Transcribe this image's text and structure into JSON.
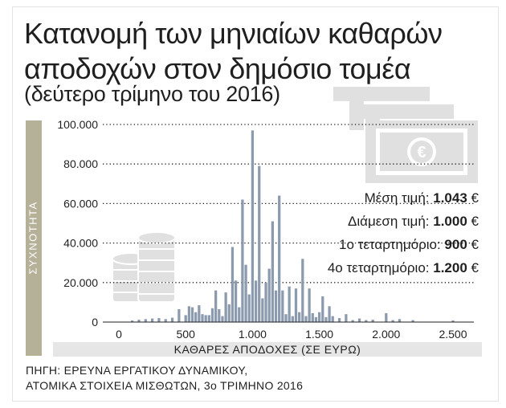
{
  "title_line1": "Κατανομή των μηνιαίων καθαρών",
  "title_line2": "αποδοχών στον δημόσιο τομέα",
  "subtitle": "(δεύτερο τρίμηνο του 2016)",
  "stats": [
    {
      "label": "Μέση τιμή:",
      "value": "1.043",
      "unit": "€"
    },
    {
      "label": "Διάμεση τιμή:",
      "value": "1.000",
      "unit": "€"
    },
    {
      "label": "1ο τεταρτημόριο:",
      "value": "900",
      "unit": "€"
    },
    {
      "label": "4ο τεταρτημόριο:",
      "value": "1.200",
      "unit": "€"
    }
  ],
  "source_line1": "ΠΗΓΗ: ΕΡΕΥΝΑ ΕΡΓΑΤΙΚΟΥ ΔΥΝΑΜΙΚΟΥ,",
  "source_line2": "ΑΤΟΜΙΚΑ ΣΤΟΙΧΕΙΑ ΜΙΣΘΩΤΩΝ, 3ο ΤΡΙΜΗΝΟ 2016",
  "colors": {
    "bar": "#8b9aad",
    "ylabel_band": "#b5b098",
    "xlabel_band": "#e6e6e6",
    "text": "#1f1f1f",
    "icon": "#e0e0e0"
  },
  "icons": [
    "euro-banknotes-icon",
    "coin-stacks-icon"
  ],
  "chart_data": {
    "type": "bar",
    "title": "Κατανομή των μηνιαίων καθαρών αποδοχών στον δημόσιο τομέα",
    "subtitle": "(δεύτερο τρίμηνο του 2016)",
    "xlabel": "ΚΑΘΑΡΕΣ ΑΠΟΔΟΧΕΣ (ΣΕ ΕΥΡΩ)",
    "ylabel": "ΣΥΧΝΟΤΗΤΑ",
    "xlim": [
      -25,
      2625
    ],
    "ylim": [
      0,
      100000
    ],
    "x_ticks": [
      0,
      500,
      1000,
      1500,
      2000,
      2500
    ],
    "x_tick_labels": [
      "0",
      "500",
      "1.000",
      "1.500",
      "2.000",
      "2.500"
    ],
    "y_ticks": [
      0,
      20000,
      40000,
      60000,
      80000,
      100000
    ],
    "y_tick_labels": [
      "0",
      "20.000",
      "40.000",
      "60.000",
      "80.000",
      "100.000"
    ],
    "grid": "horizontal-dotted",
    "bin_width": 25,
    "x": [
      100,
      150,
      200,
      250,
      300,
      350,
      400,
      450,
      500,
      525,
      550,
      575,
      600,
      625,
      650,
      675,
      700,
      725,
      750,
      775,
      800,
      825,
      850,
      875,
      900,
      925,
      950,
      975,
      1000,
      1025,
      1050,
      1075,
      1100,
      1125,
      1150,
      1175,
      1200,
      1225,
      1250,
      1275,
      1300,
      1325,
      1350,
      1375,
      1400,
      1425,
      1450,
      1475,
      1500,
      1525,
      1550,
      1575,
      1600,
      1650,
      1700,
      1750,
      1800,
      1850,
      1900,
      2000,
      2050,
      2100,
      2200,
      2500
    ],
    "values": [
      800,
      1200,
      1500,
      1800,
      2000,
      1500,
      2200,
      6500,
      3500,
      8000,
      7500,
      5000,
      8500,
      4000,
      3500,
      3500,
      7000,
      16000,
      6500,
      3000,
      15000,
      9000,
      38000,
      21000,
      7500,
      62000,
      29000,
      14000,
      97000,
      21000,
      79000,
      12000,
      20000,
      27000,
      51000,
      16000,
      64000,
      16000,
      4000,
      18000,
      3000,
      17000,
      5000,
      32000,
      3000,
      17000,
      4500,
      2500,
      5000,
      13000,
      2500,
      8000,
      3000,
      2000,
      4000,
      1000,
      1800,
      1000,
      1200,
      4500,
      1000,
      1500,
      1000,
      800
    ]
  }
}
